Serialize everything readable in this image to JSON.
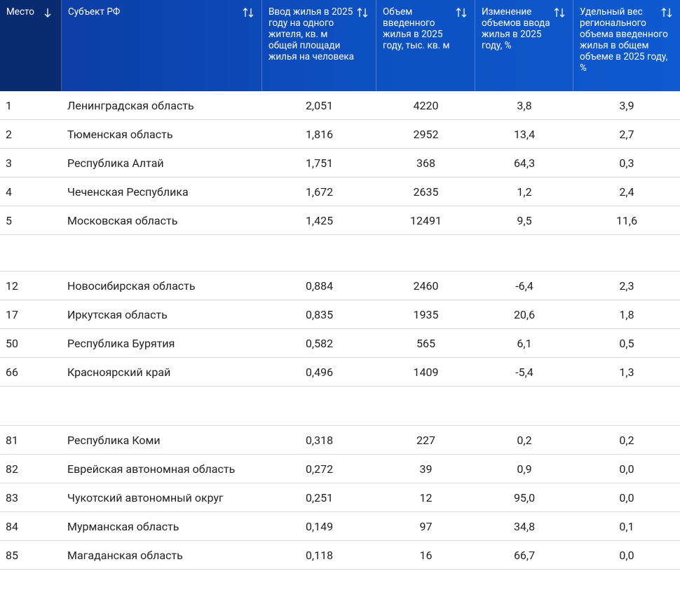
{
  "table": {
    "headers": [
      "Место",
      "Субъект РФ",
      "Ввод жилья в 2025 году на одного жителя, кв. м общей площади жилья на человека",
      "Объем введенного жилья в 2025 году, тыс. кв. м",
      "Изменение объемов ввода жилья в 2025 году, %",
      "Удельный вес регионального объема введенного жилья в общем объеме в 2025 году, %"
    ],
    "groups": [
      [
        [
          "1",
          "Ленинградская область",
          "2,051",
          "4220",
          "3,8",
          "3,9"
        ],
        [
          "2",
          "Тюменская область",
          "1,816",
          "2952",
          "13,4",
          "2,7"
        ],
        [
          "3",
          "Республика Алтай",
          "1,751",
          "368",
          "64,3",
          "0,3"
        ],
        [
          "4",
          "Чеченская Республика",
          "1,672",
          "2635",
          "1,2",
          "2,4"
        ],
        [
          "5",
          "Московская область",
          "1,425",
          "12491",
          "9,5",
          "11,6"
        ]
      ],
      [
        [
          "12",
          "Новосибирская область",
          "0,884",
          "2460",
          "-6,4",
          "2,3"
        ],
        [
          "17",
          "Иркутская область",
          "0,835",
          "1935",
          "20,6",
          "1,8"
        ],
        [
          "50",
          "Республика Бурятия",
          "0,582",
          "565",
          "6,1",
          "0,5"
        ],
        [
          "66",
          "Красноярский край",
          "0,496",
          "1409",
          "-5,4",
          "1,3"
        ]
      ],
      [
        [
          "81",
          "Республика Коми",
          "0,318",
          "227",
          "0,2",
          "0,2"
        ],
        [
          "82",
          "Еврейская автономная область",
          "0,272",
          "39",
          "0,9",
          "0,0"
        ],
        [
          "83",
          "Чукотский автономный округ",
          "0,251",
          "12",
          "95,0",
          "0,0"
        ],
        [
          "84",
          "Мурманская область",
          "0,149",
          "97",
          "34,8",
          "0,1"
        ],
        [
          "85",
          "Магаданская область",
          "0,118",
          "16",
          "66,7",
          "0,0"
        ]
      ]
    ]
  }
}
